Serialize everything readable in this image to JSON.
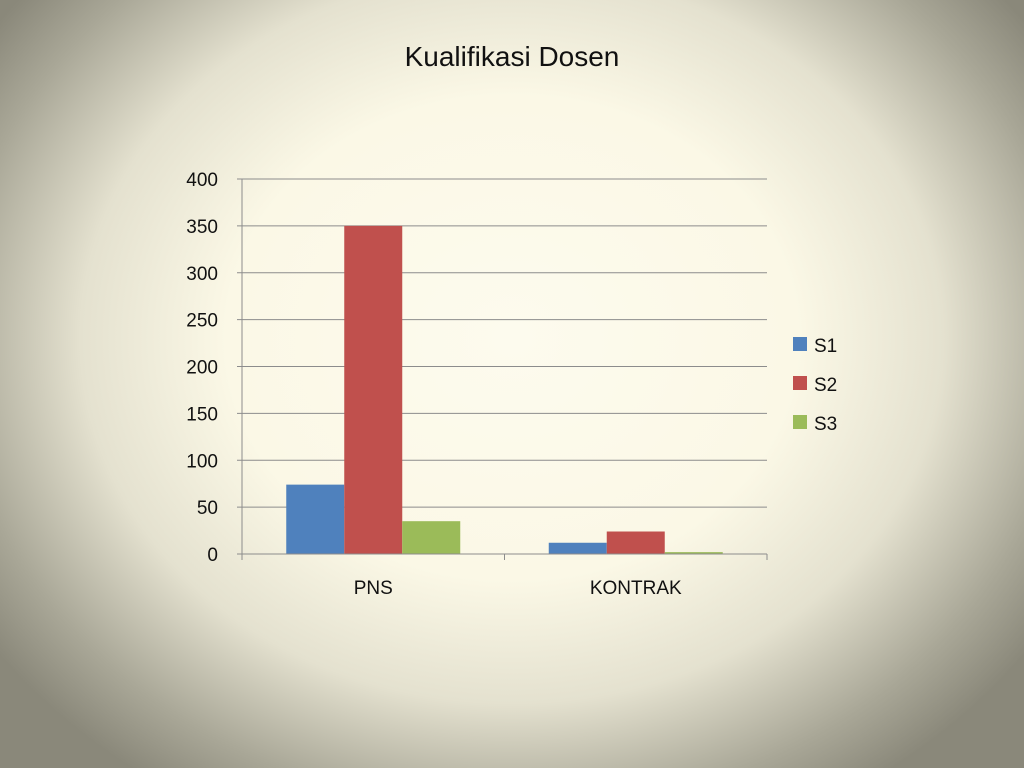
{
  "chart_data": {
    "type": "bar",
    "title": "Kualifikasi Dosen",
    "categories": [
      "PNS",
      "KONTRAK"
    ],
    "series": [
      {
        "name": "S1",
        "values": [
          74,
          12
        ],
        "color": "#4f81bd"
      },
      {
        "name": "S2",
        "values": [
          350,
          24
        ],
        "color": "#c0504d"
      },
      {
        "name": "S3",
        "values": [
          35,
          2
        ],
        "color": "#9bbb59"
      }
    ],
    "ylim": [
      0,
      400
    ],
    "yticks": [
      0,
      50,
      100,
      150,
      200,
      250,
      300,
      350,
      400
    ],
    "grid": true,
    "legend": "right"
  }
}
